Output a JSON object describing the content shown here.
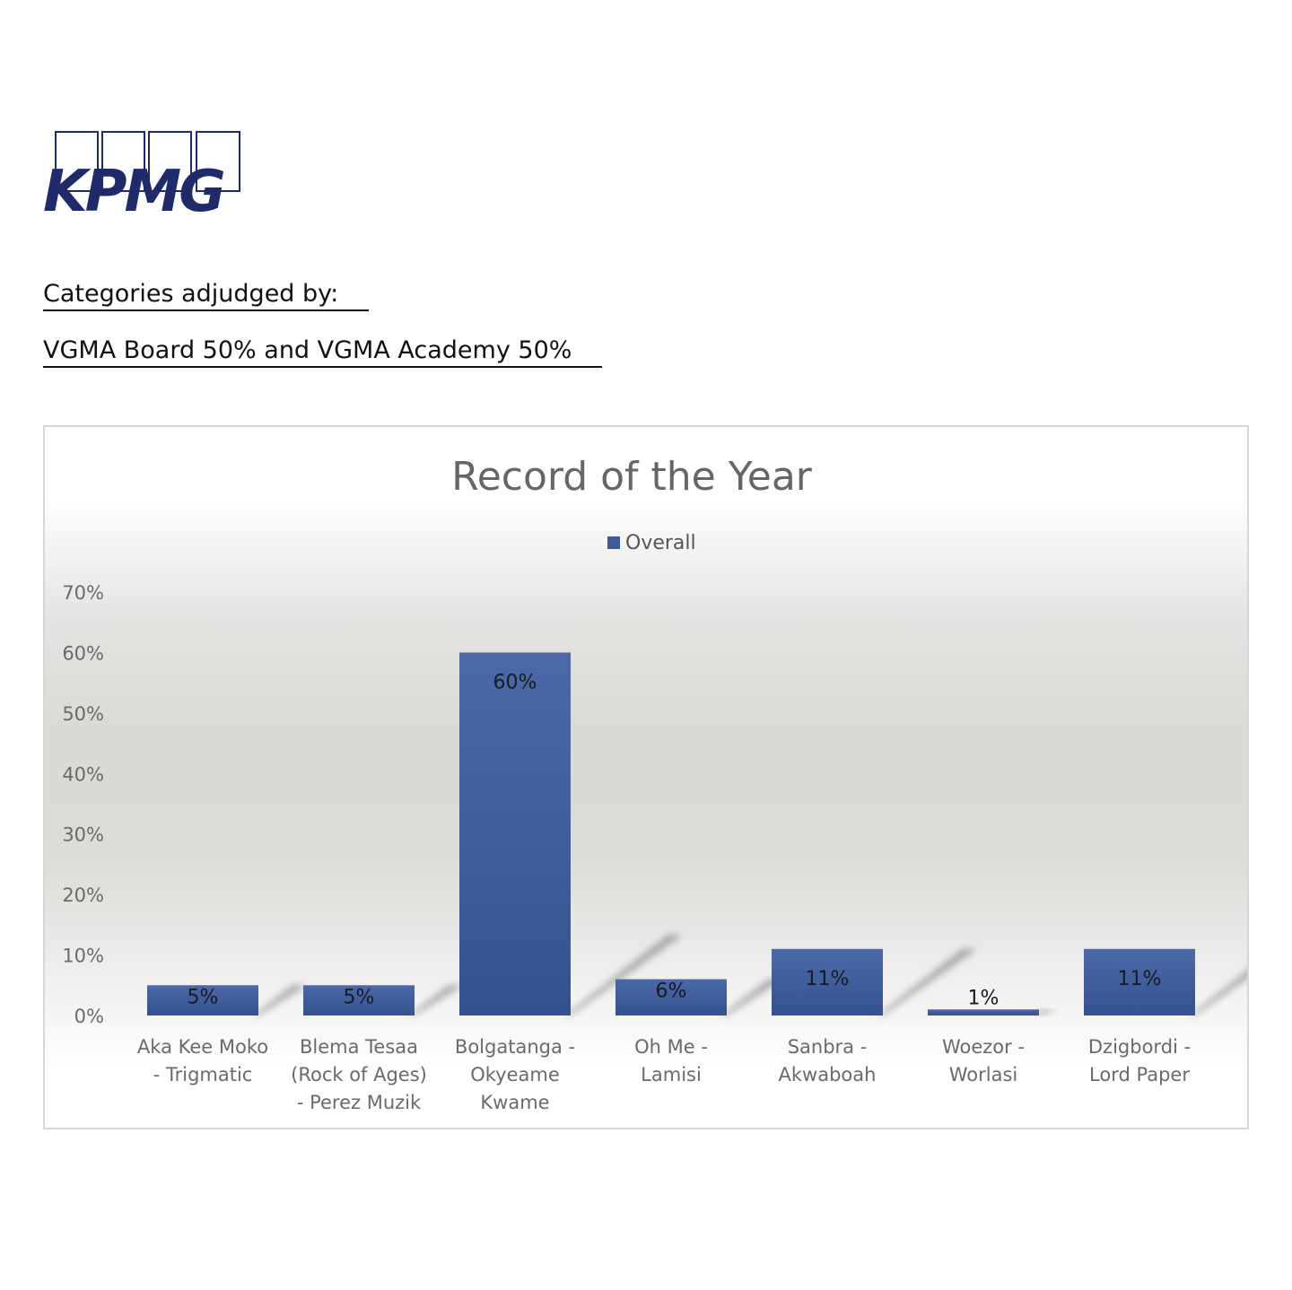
{
  "logo": {
    "text": "KPMG",
    "color": "#1f2a6b"
  },
  "adjudication": {
    "heading": "Categories adjudged by:",
    "detail": "VGMA Board 50% and VGMA Academy 50%"
  },
  "chart_data": {
    "type": "bar",
    "title": "Record of the Year",
    "legend": {
      "position": "top",
      "entries": [
        "Overall"
      ]
    },
    "categories": [
      [
        "Aka Kee Moko",
        "- Trigmatic"
      ],
      [
        "Blema Tesaa",
        "(Rock of Ages)",
        "- Perez Muzik"
      ],
      [
        "Bolgatanga -",
        "Okyeame",
        "Kwame"
      ],
      [
        "Oh Me -",
        "Lamisi"
      ],
      [
        "Sanbra -",
        "Akwaboah"
      ],
      [
        "Woezor -",
        "Worlasi"
      ],
      [
        "Dzigbordi -",
        "Lord Paper"
      ]
    ],
    "series": [
      {
        "name": "Overall",
        "values": [
          5,
          5,
          60,
          6,
          11,
          1,
          11
        ],
        "labels": [
          "5%",
          "5%",
          "60%",
          "6%",
          "11%",
          "1%",
          "11%"
        ],
        "color": "#3d5a9a"
      }
    ],
    "ylim": [
      0,
      70
    ],
    "yticks": [
      "0%",
      "10%",
      "20%",
      "30%",
      "40%",
      "50%",
      "60%",
      "70%"
    ],
    "grid": false
  }
}
